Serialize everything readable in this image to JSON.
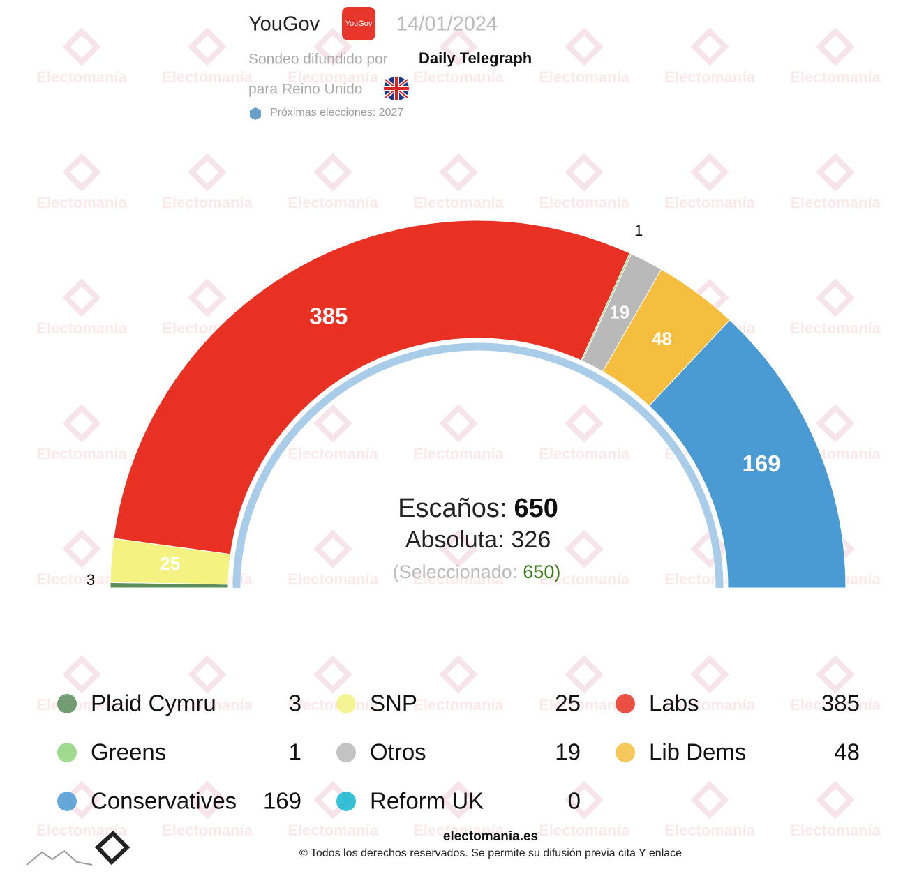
{
  "header": {
    "pollster": "YouGov",
    "date": "14/01/2024",
    "spread_by_label": "Sondeo difundido por",
    "spread_by": "Daily Telegraph",
    "for_label": "para Reino Unido",
    "next_elections": "Próximas elecciones: 2027"
  },
  "watermark": "Electomanía",
  "chart_data": {
    "type": "hemicycle",
    "categories": [
      "Plaid Cymru",
      "SNP",
      "Labs",
      "Greens",
      "Otros",
      "Lib Dems",
      "Conservatives",
      "Reform UK"
    ],
    "values": [
      3,
      25,
      385,
      1,
      19,
      48,
      169,
      0
    ],
    "colors": [
      "#5b8c5a",
      "#f4f382",
      "#e83123",
      "#8fd27d",
      "#b9b9b9",
      "#f5be3e",
      "#4a9ad4",
      "#12b6cf"
    ],
    "total_label": "Escaños:",
    "total": 650,
    "majority_label": "Absoluta:",
    "majority": 326,
    "selected_label": "(Seleccionado:",
    "selected": 650,
    "selected_close": ")"
  },
  "footer": {
    "site": "electomania.es",
    "copyright": "© Todos los derechos reservados. Se permite su difusión previa cita Y enlace"
  }
}
